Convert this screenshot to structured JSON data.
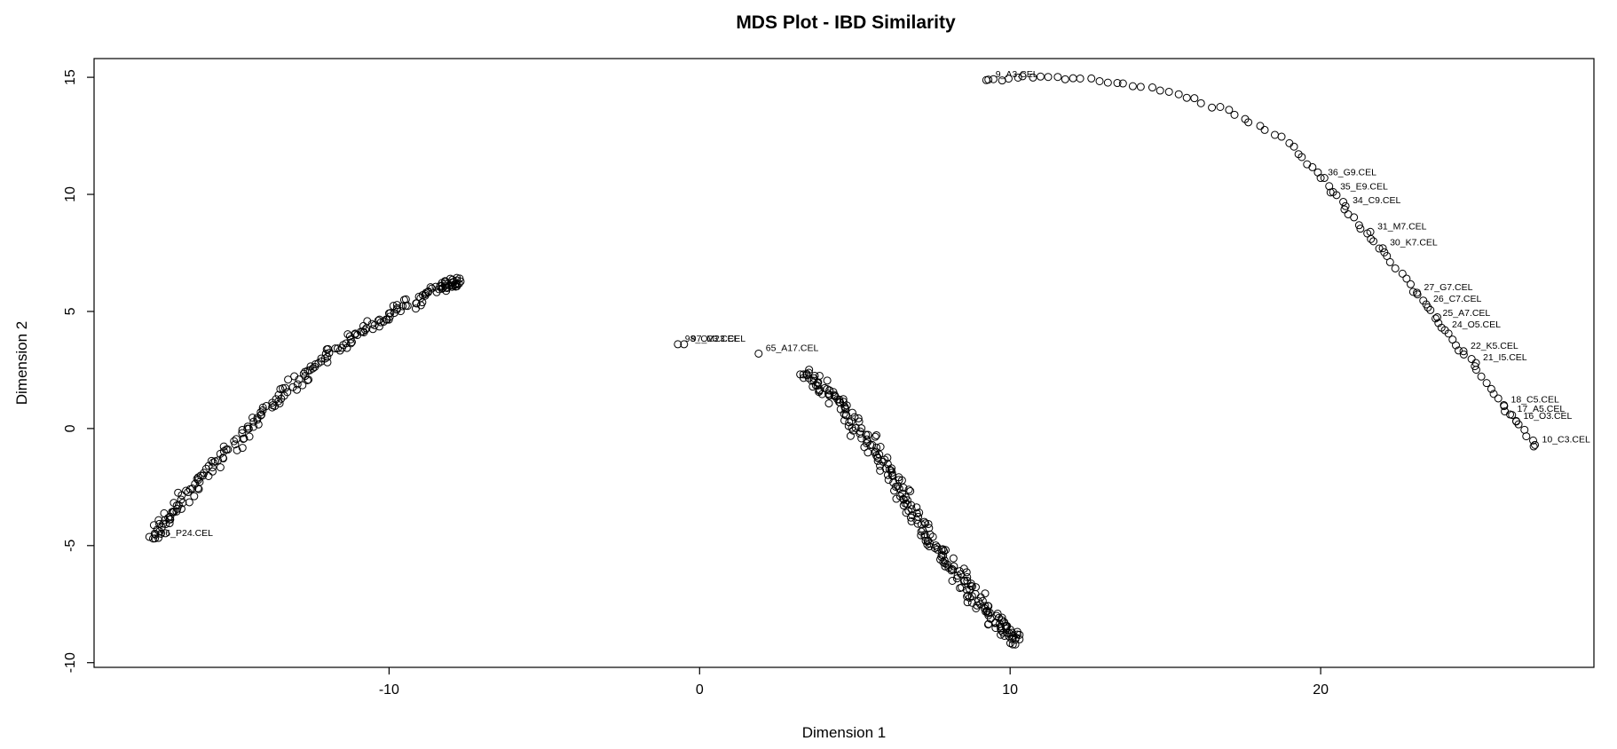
{
  "chart_data": {
    "type": "scatter",
    "title": "MDS Plot - IBD Similarity",
    "xlabel": "Dimension 1",
    "ylabel": "Dimension 2",
    "xlim": [
      -19.5,
      28.8
    ],
    "ylim": [
      -10.2,
      15.8
    ],
    "xticks": [
      -10,
      0,
      10,
      20
    ],
    "yticks": [
      -10,
      -5,
      0,
      5,
      10,
      15
    ],
    "xtick_labels": [
      "-10",
      "0",
      "10",
      "20"
    ],
    "ytick_labels": [
      "-10",
      "-5",
      "0",
      "5",
      "10",
      "15"
    ],
    "grid": false,
    "legend": "none",
    "marker": "open-circle",
    "clusters": [
      {
        "description_points": "dense arc, lower-left",
        "spine": [
          [
            -17.6,
            -4.7
          ],
          [
            -16.8,
            -3.3
          ],
          [
            -15.6,
            -1.5
          ],
          [
            -14.2,
            0.5
          ],
          [
            -12.8,
            2.2
          ],
          [
            -11.3,
            3.8
          ],
          [
            -9.8,
            5.0
          ],
          [
            -8.3,
            6.0
          ],
          [
            -7.8,
            6.4
          ]
        ],
        "count": 230,
        "spread": 1.1
      },
      {
        "description_points": "dense diagonal band, lower-center",
        "spine": [
          [
            3.3,
            2.4
          ],
          [
            4.5,
            1.2
          ],
          [
            5.5,
            -0.8
          ],
          [
            6.5,
            -2.8
          ],
          [
            7.5,
            -4.8
          ],
          [
            8.5,
            -6.6
          ],
          [
            9.5,
            -8.2
          ],
          [
            10.3,
            -9.1
          ]
        ],
        "count": 260,
        "spread": 1.3
      },
      {
        "description_points": "sparse arc, upper-right",
        "spine": [
          [
            9.3,
            14.9
          ],
          [
            11.0,
            15.0
          ],
          [
            13.0,
            14.9
          ],
          [
            15.0,
            14.4
          ],
          [
            17.0,
            13.6
          ],
          [
            18.8,
            12.4
          ],
          [
            20.0,
            10.8
          ],
          [
            21.0,
            9.0
          ],
          [
            22.0,
            7.6
          ],
          [
            23.0,
            5.9
          ],
          [
            24.0,
            4.2
          ],
          [
            25.0,
            2.6
          ],
          [
            26.0,
            0.8
          ],
          [
            26.9,
            -0.7
          ]
        ],
        "count": 95,
        "spread": 0.35
      }
    ],
    "labeled_points": [
      {
        "label": "98_O23.CEL",
        "x": -0.7,
        "y": 3.6
      },
      {
        "label": "97_M23.CEL",
        "x": -0.5,
        "y": 3.6
      },
      {
        "label": "65_A17.CEL",
        "x": 1.9,
        "y": 3.2
      },
      {
        "label": "96_P24.CEL",
        "x": -17.6,
        "y": -4.7
      },
      {
        "label": "9_A3.CEL",
        "x": 9.3,
        "y": 14.9
      },
      {
        "label": "35_E9.CEL",
        "x": 20.4,
        "y": 10.1
      },
      {
        "label": "34_C9.CEL",
        "x": 20.8,
        "y": 9.5
      },
      {
        "label": "36_G9.CEL",
        "x": 20.0,
        "y": 10.7
      },
      {
        "label": "31_M7.CEL",
        "x": 21.6,
        "y": 8.4
      },
      {
        "label": "30_K7.CEL",
        "x": 22.0,
        "y": 7.7
      },
      {
        "label": "27_G7.CEL",
        "x": 23.1,
        "y": 5.8
      },
      {
        "label": "26_C7.CEL",
        "x": 23.4,
        "y": 5.3
      },
      {
        "label": "25_A7.CEL",
        "x": 23.7,
        "y": 4.7
      },
      {
        "label": "24_O5.CEL",
        "x": 24.0,
        "y": 4.2
      },
      {
        "label": "18_C5.CEL",
        "x": 25.9,
        "y": 1.0
      },
      {
        "label": "17_A5.CEL",
        "x": 26.1,
        "y": 0.6
      },
      {
        "label": "16_O3.CEL",
        "x": 26.3,
        "y": 0.3
      },
      {
        "label": "10_C3.CEL",
        "x": 26.9,
        "y": -0.7
      },
      {
        "label": "21_I5.CEL",
        "x": 25.0,
        "y": 2.8
      },
      {
        "label": "22_K5.CEL",
        "x": 24.6,
        "y": 3.3
      }
    ]
  }
}
